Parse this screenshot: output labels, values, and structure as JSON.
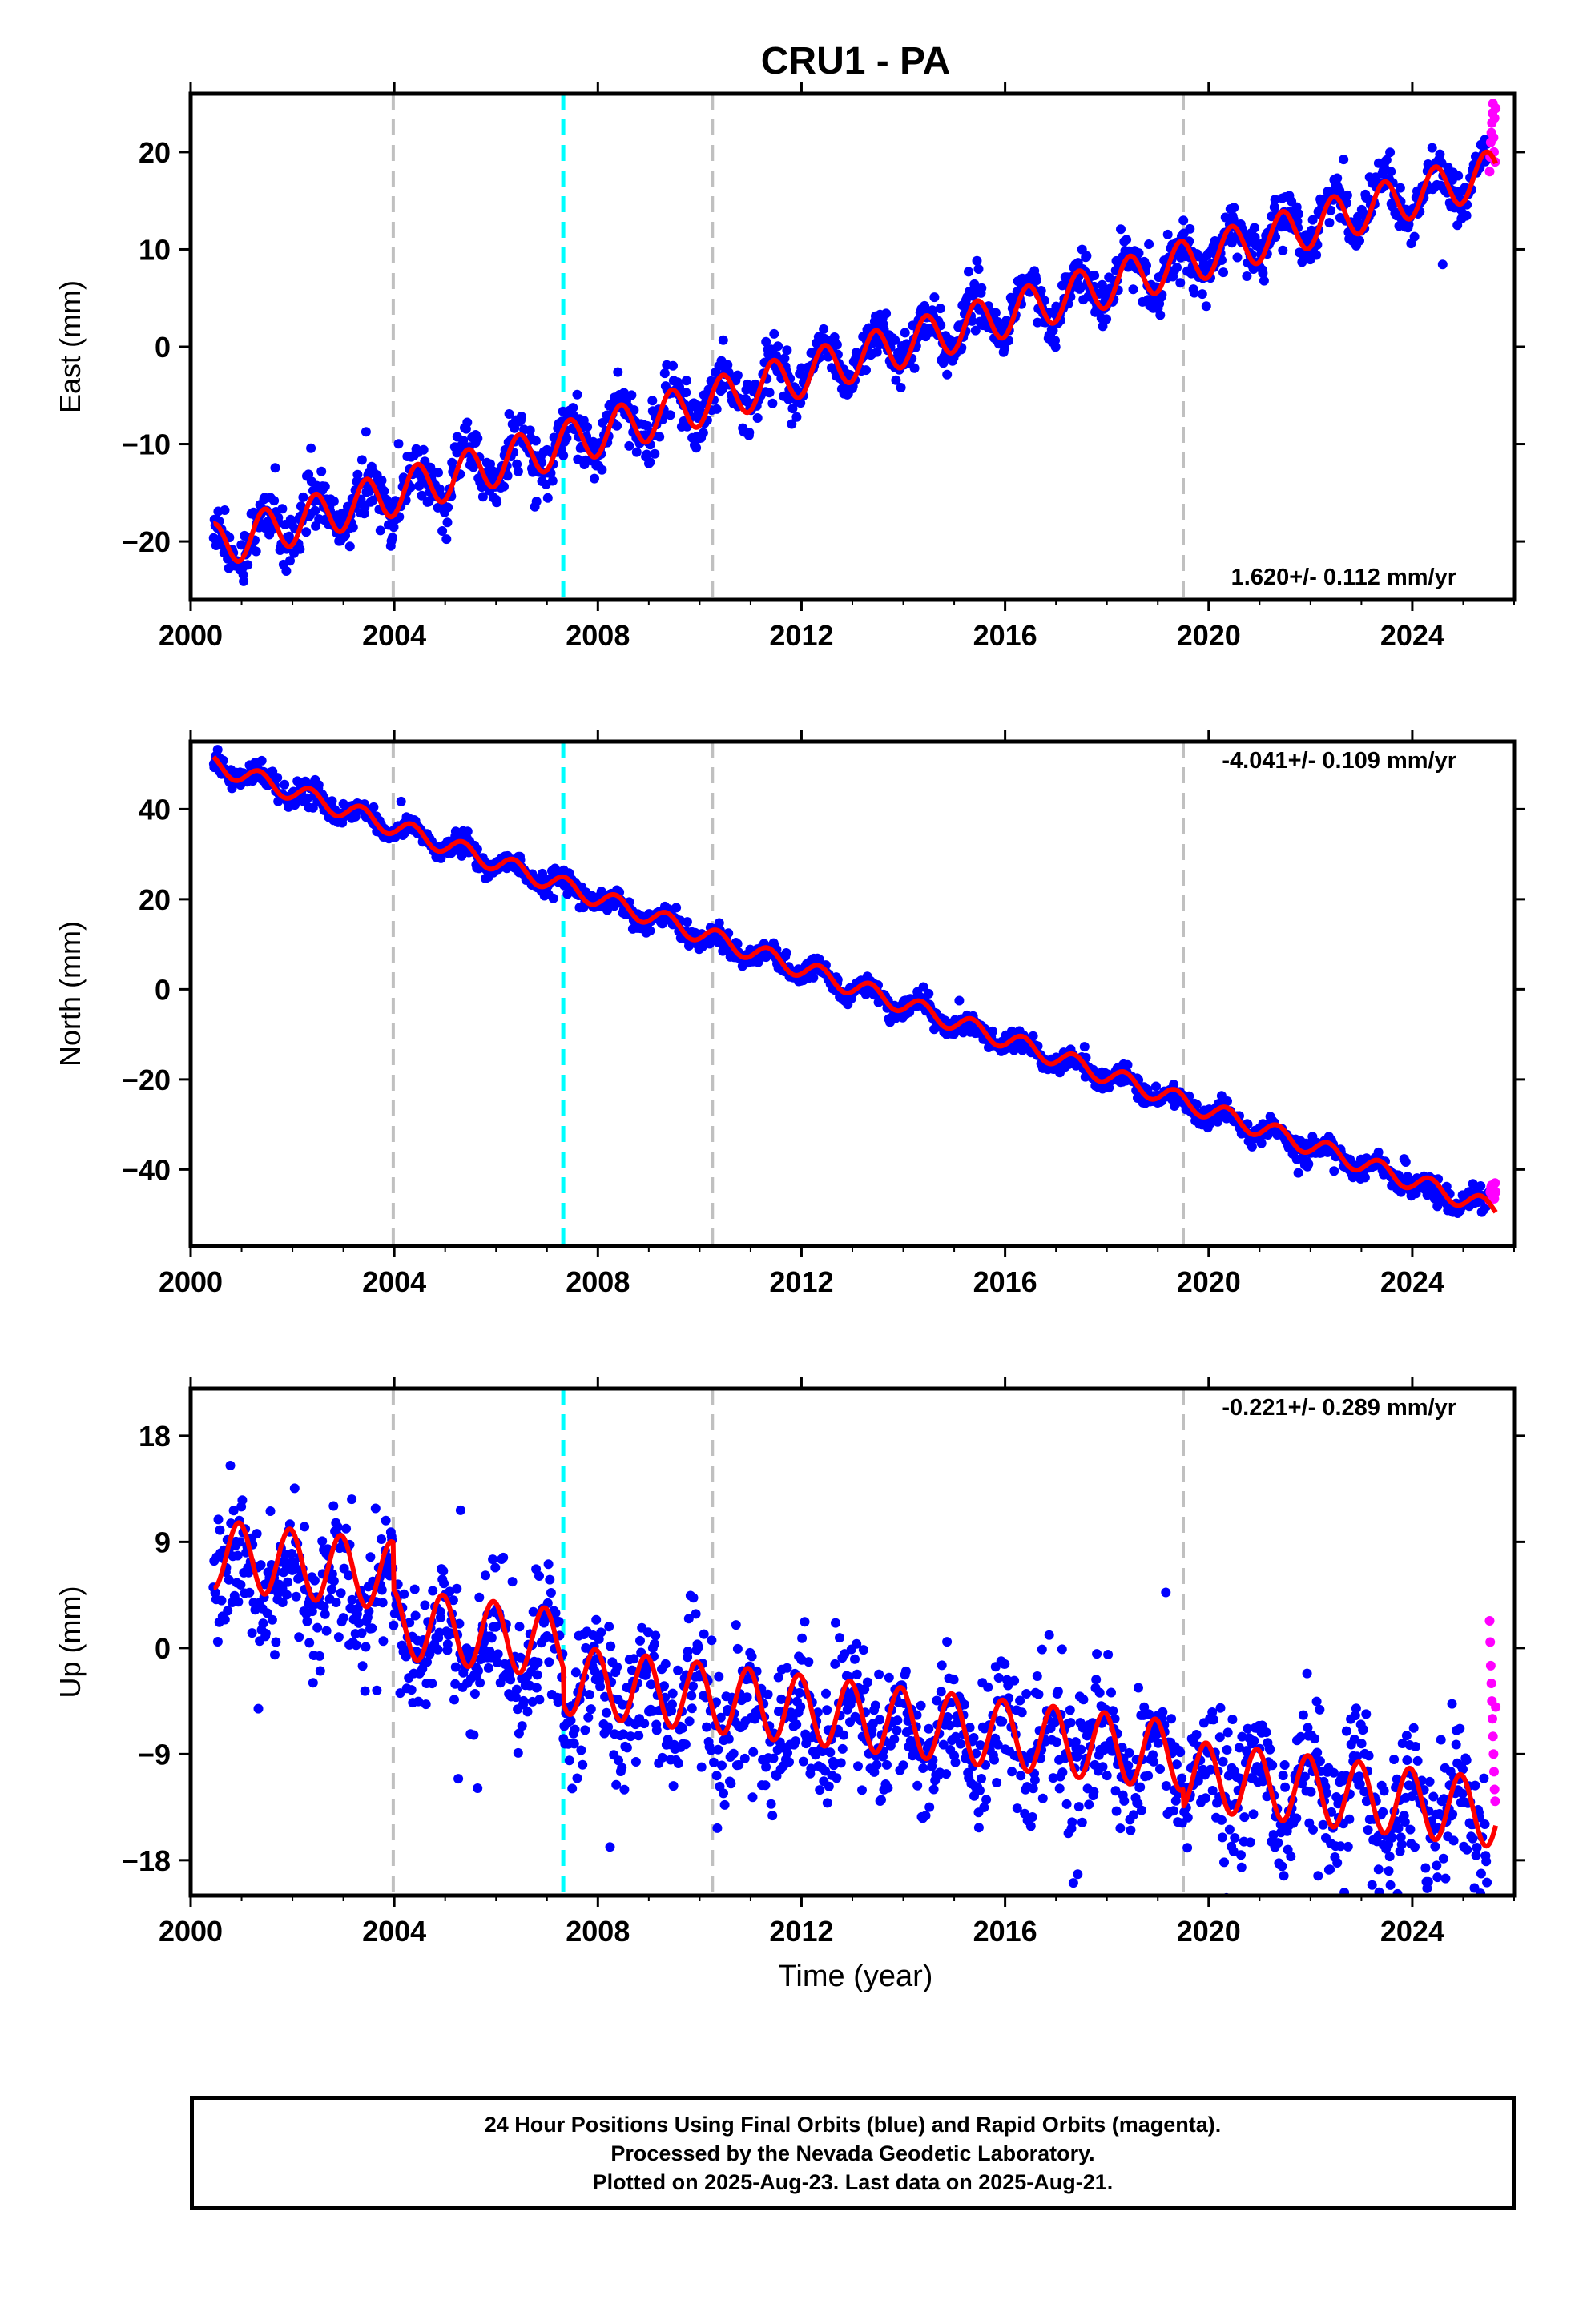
{
  "title": "CRU1 - PA",
  "x_label": "Time (year)",
  "colors": {
    "final_orbits": "#0000ff",
    "rapid_orbits": "#ff00ff",
    "model_fit": "#ff0000",
    "equipment_change": "#c0c0c0",
    "earthquake": "#00ffff"
  },
  "caption": [
    "24 Hour Positions Using Final Orbits (blue) and Rapid Orbits (magenta).",
    "Processed by the Nevada Geodetic Laboratory.",
    "Plotted on 2025-Aug-23. Last data on 2025-Aug-21."
  ],
  "chart_data": [
    {
      "type": "scatter",
      "ylabel": "East (mm)",
      "xlim": [
        2000,
        2026
      ],
      "ylim": [
        -26,
        26
      ],
      "xticks": [
        2000,
        2004,
        2008,
        2012,
        2016,
        2020,
        2024
      ],
      "yticks": [
        -20,
        -10,
        0,
        10,
        20
      ],
      "rate_label": "1.620+/- 0.112 mm/yr",
      "rate_position": "bottom-right",
      "gray_lines": [
        2003.98,
        2010.25,
        2019.5
      ],
      "cyan_lines": [
        2007.32
      ],
      "series": [
        {
          "role": "final",
          "x_start": 2000.45,
          "x_end": 2025.5,
          "trend_start": -20.5,
          "trend_end": 18.0,
          "amplitude": 2.2,
          "phase": 0.8,
          "scatter": 1.3,
          "outlier_spread": 3.0
        },
        {
          "role": "rapid",
          "x_start": 2025.52,
          "x_end": 2025.64,
          "y_values": [
            18.0,
            19.5,
            21.0,
            22.0,
            23.0,
            24.0,
            25.0,
            21.5,
            20.0,
            23.5,
            19.0,
            24.5
          ]
        }
      ],
      "fit": {
        "x_start": 2000.45,
        "x_end": 2025.64,
        "trend_start": -20.5,
        "trend_end": 18.0,
        "amplitude": 2.3,
        "phase": 0.8
      }
    },
    {
      "type": "scatter",
      "ylabel": "North (mm)",
      "xlim": [
        2000,
        2026
      ],
      "ylim": [
        -57,
        55
      ],
      "xticks": [
        2000,
        2004,
        2008,
        2012,
        2016,
        2020,
        2024
      ],
      "yticks": [
        -40,
        -20,
        0,
        20,
        40
      ],
      "rate_label": "-4.041+/- 0.109 mm/yr",
      "rate_position": "top-right",
      "gray_lines": [
        2003.98,
        2010.25,
        2019.5
      ],
      "cyan_lines": [
        2007.32
      ],
      "series": [
        {
          "role": "final",
          "x_start": 2000.45,
          "x_end": 2025.5,
          "trend_start": 50.0,
          "trend_end": -49.0,
          "amplitude": 1.8,
          "phase": 0.9,
          "scatter": 1.1,
          "outlier_spread": 2.5
        },
        {
          "role": "rapid",
          "x_start": 2025.52,
          "x_end": 2025.64,
          "y_values": [
            -47.0,
            -45.0,
            -44.0,
            -43.5,
            -46.0,
            -45.5,
            -44.5,
            -46.5,
            -43.0,
            -45.0
          ]
        }
      ],
      "fit": {
        "x_start": 2000.45,
        "x_end": 2025.64,
        "trend_start": 50.0,
        "trend_end": -49.0,
        "amplitude": 2.0,
        "phase": 0.9
      }
    },
    {
      "type": "scatter",
      "ylabel": "Up (mm)",
      "xlim": [
        2000,
        2026
      ],
      "ylim": [
        -21,
        22
      ],
      "xticks": [
        2000,
        2004,
        2008,
        2012,
        2016,
        2020,
        2024
      ],
      "yticks": [
        -18,
        -9,
        0,
        9,
        18
      ],
      "rate_label": "-0.221+/- 0.289 mm/yr",
      "rate_position": "top-right",
      "gray_lines": [
        2003.98,
        2010.25,
        2019.5
      ],
      "cyan_lines": [
        2007.32
      ],
      "series": [
        {
          "role": "final",
          "x_start": 2000.45,
          "x_end": 2025.5,
          "trend_start": 6.5,
          "trend_end": -5.5,
          "amplitude": 2.8,
          "phase": 0.3,
          "scatter": 2.8,
          "outlier_spread": 5.5,
          "offsets": [
            {
              "at": 2003.98,
              "delta": -4.0
            },
            {
              "at": 2007.32,
              "delta": -3.0
            },
            {
              "at": 2019.5,
              "delta": -1.5
            }
          ]
        },
        {
          "role": "rapid",
          "x_start": 2025.52,
          "x_end": 2025.64,
          "y_values": [
            2.3,
            0.5,
            -1.5,
            -3.0,
            -4.5,
            -6.0,
            -7.5,
            -9.0,
            -10.5,
            -12.0,
            -13.0,
            -5.0
          ]
        }
      ],
      "fit": {
        "x_start": 2000.45,
        "x_end": 2025.64,
        "trend_start": 8.0,
        "trend_end": -5.5,
        "amplitude": 2.9,
        "phase": 0.3,
        "offsets": [
          {
            "at": 2003.98,
            "delta": -4.0
          },
          {
            "at": 2007.32,
            "delta": -3.0
          },
          {
            "at": 2019.5,
            "delta": -1.5
          }
        ]
      }
    }
  ]
}
